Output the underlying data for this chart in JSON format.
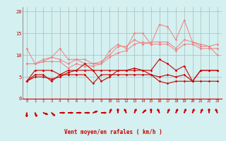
{
  "x": [
    0,
    1,
    2,
    3,
    4,
    5,
    6,
    7,
    8,
    9,
    10,
    11,
    12,
    13,
    14,
    15,
    16,
    17,
    18,
    19,
    20,
    21,
    22,
    23
  ],
  "lines_light": [
    [
      11.5,
      8.0,
      8.5,
      9.5,
      11.5,
      9.0,
      9.0,
      8.0,
      8.0,
      8.0,
      11.0,
      12.5,
      11.5,
      15.0,
      15.0,
      12.5,
      17.0,
      16.5,
      13.5,
      18.0,
      13.0,
      12.5,
      12.0,
      10.0
    ],
    [
      8.0,
      8.0,
      9.0,
      9.5,
      9.0,
      8.0,
      9.0,
      9.0,
      8.0,
      8.5,
      10.0,
      12.0,
      12.0,
      13.5,
      12.5,
      13.0,
      13.0,
      13.0,
      11.5,
      13.5,
      13.0,
      12.0,
      12.0,
      12.5
    ],
    [
      8.0,
      8.0,
      8.5,
      8.5,
      8.5,
      7.0,
      8.0,
      7.5,
      7.5,
      8.0,
      9.5,
      10.5,
      11.0,
      12.5,
      13.0,
      12.5,
      12.5,
      12.5,
      11.0,
      12.5,
      12.5,
      11.5,
      11.5,
      11.5
    ]
  ],
  "lines_dark": [
    [
      4.0,
      5.0,
      5.0,
      4.5,
      5.0,
      6.0,
      6.5,
      8.0,
      6.5,
      4.0,
      5.0,
      6.5,
      6.5,
      7.0,
      6.5,
      5.5,
      5.0,
      5.5,
      5.0,
      5.5,
      4.0,
      6.5,
      6.5,
      6.5
    ],
    [
      4.0,
      6.5,
      6.5,
      6.5,
      5.5,
      6.5,
      6.5,
      6.5,
      6.5,
      6.5,
      6.5,
      6.5,
      6.5,
      6.5,
      6.5,
      6.5,
      9.0,
      8.0,
      6.5,
      7.5,
      4.0,
      6.5,
      6.5,
      6.5
    ],
    [
      4.0,
      5.5,
      5.5,
      4.0,
      5.5,
      5.5,
      5.5,
      5.5,
      3.5,
      5.5,
      5.5,
      5.5,
      5.5,
      5.5,
      5.5,
      5.5,
      4.0,
      3.5,
      4.0,
      4.0,
      4.0,
      4.0,
      4.0,
      4.0
    ]
  ],
  "color_light": "#f08080",
  "color_dark": "#cc0000",
  "bg_color": "#d4f0f0",
  "grid_color": "#b0b8b8",
  "axis_color": "#cc0000",
  "xlabel": "Vent moyen/en rafales ( km/h )",
  "ylim": [
    0,
    21
  ],
  "xlim": [
    -0.5,
    23.5
  ],
  "yticks": [
    0,
    5,
    10,
    15,
    20
  ],
  "xticks": [
    0,
    1,
    2,
    3,
    4,
    5,
    6,
    7,
    8,
    9,
    10,
    11,
    12,
    13,
    14,
    15,
    16,
    17,
    18,
    19,
    20,
    21,
    22,
    23
  ],
  "arrow_angles": [
    0,
    22.5,
    67.5,
    45,
    90,
    90,
    90,
    90,
    112.5,
    90,
    157.5,
    180,
    202.5,
    157.5,
    135,
    180,
    202.5,
    157.5,
    157.5,
    157.5,
    157.5,
    157.5,
    180,
    202.5
  ]
}
